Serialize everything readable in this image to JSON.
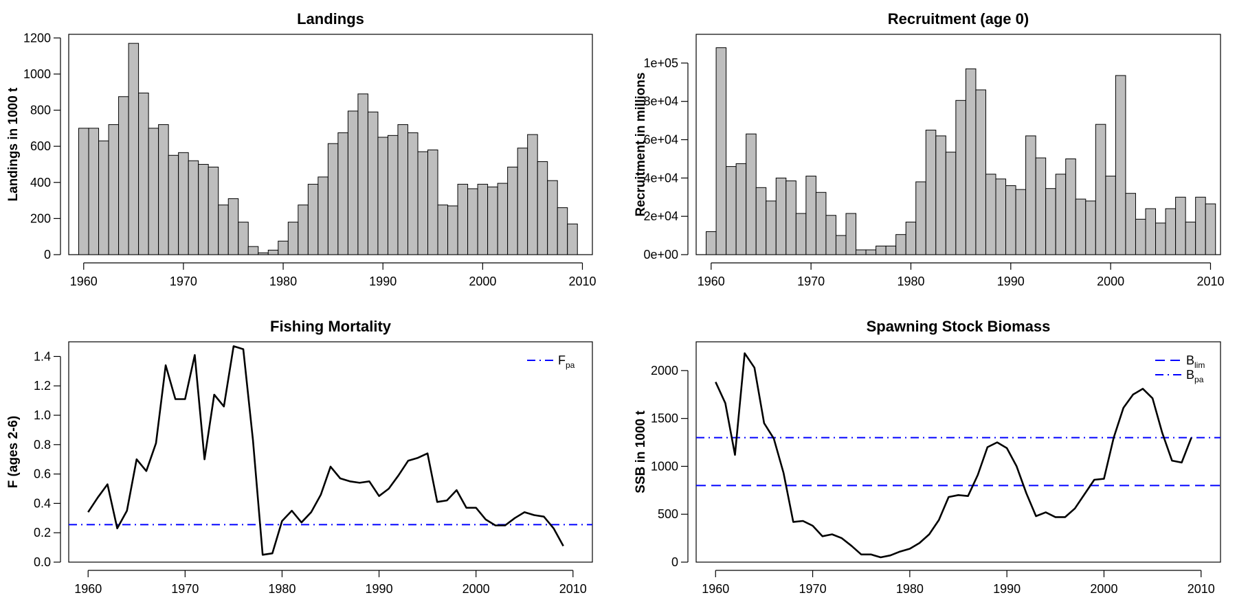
{
  "chart_data": [
    {
      "type": "bar",
      "title": "Landings",
      "xlabel": "",
      "ylabel": "Landings in 1000 t",
      "xlim": [
        1958.5,
        2011
      ],
      "ylim": [
        0,
        1220
      ],
      "x_ticks": [
        1960,
        1970,
        1980,
        1990,
        2000,
        2010
      ],
      "y_ticks": [
        0,
        200,
        400,
        600,
        800,
        1000,
        1200
      ],
      "y_tick_labels": [
        "0",
        "200",
        "400",
        "600",
        "800",
        "1000",
        "1200"
      ],
      "grid": false,
      "bar_color": "#bebebe",
      "x": [
        1960,
        1961,
        1962,
        1963,
        1964,
        1965,
        1966,
        1967,
        1968,
        1969,
        1970,
        1971,
        1972,
        1973,
        1974,
        1975,
        1976,
        1977,
        1978,
        1979,
        1980,
        1981,
        1982,
        1983,
        1984,
        1985,
        1986,
        1987,
        1988,
        1989,
        1990,
        1991,
        1992,
        1993,
        1994,
        1995,
        1996,
        1997,
        1998,
        1999,
        2000,
        2001,
        2002,
        2003,
        2004,
        2005,
        2006,
        2007,
        2008,
        2009
      ],
      "values": [
        700,
        700,
        630,
        720,
        875,
        1170,
        895,
        700,
        720,
        550,
        565,
        520,
        500,
        485,
        275,
        310,
        180,
        45,
        10,
        25,
        75,
        180,
        275,
        390,
        430,
        615,
        675,
        795,
        890,
        790,
        650,
        660,
        720,
        675,
        570,
        580,
        275,
        270,
        390,
        365,
        390,
        375,
        395,
        485,
        590,
        665,
        515,
        410,
        260,
        170
      ]
    },
    {
      "type": "bar",
      "title": "Recruitment (age 0)",
      "xlabel": "",
      "ylabel": "Recruitment in millions",
      "xlim": [
        1958.5,
        2011
      ],
      "ylim": [
        0,
        115000
      ],
      "x_ticks": [
        1960,
        1970,
        1980,
        1990,
        2000,
        2010
      ],
      "y_ticks": [
        0,
        20000,
        40000,
        60000,
        80000,
        100000
      ],
      "y_tick_labels": [
        "0e+00",
        "2e+04",
        "4e+04",
        "6e+04",
        "8e+04",
        "1e+05"
      ],
      "grid": false,
      "bar_color": "#bebebe",
      "x": [
        1960,
        1961,
        1962,
        1963,
        1964,
        1965,
        1966,
        1967,
        1968,
        1969,
        1970,
        1971,
        1972,
        1973,
        1974,
        1975,
        1976,
        1977,
        1978,
        1979,
        1980,
        1981,
        1982,
        1983,
        1984,
        1985,
        1986,
        1987,
        1988,
        1989,
        1990,
        1991,
        1992,
        1993,
        1994,
        1995,
        1996,
        1997,
        1998,
        1999,
        2000,
        2001,
        2002,
        2003,
        2004,
        2005,
        2006,
        2007,
        2008,
        2009,
        2010
      ],
      "values": [
        12000,
        108000,
        46000,
        47500,
        63000,
        35000,
        28000,
        40000,
        38500,
        21500,
        41000,
        32500,
        20500,
        10000,
        21500,
        2500,
        2500,
        4500,
        4500,
        10500,
        17000,
        38000,
        65000,
        62000,
        53500,
        80500,
        97000,
        86000,
        42000,
        39500,
        36000,
        34000,
        62000,
        50500,
        34500,
        42000,
        50000,
        29000,
        28000,
        68000,
        41000,
        93500,
        32000,
        18500,
        24000,
        16500,
        24000,
        30000,
        17000,
        30000,
        26500
      ]
    },
    {
      "type": "line",
      "title": "Fishing Mortality",
      "xlabel": "",
      "ylabel": "F (ages 2-6)",
      "xlim": [
        1958,
        2012
      ],
      "ylim": [
        0,
        1.5
      ],
      "x_ticks": [
        1960,
        1970,
        1980,
        1990,
        2000,
        2010
      ],
      "y_ticks": [
        0,
        0.2,
        0.4,
        0.6,
        0.8,
        1.0,
        1.2,
        1.4
      ],
      "y_tick_labels": [
        "0.0",
        "0.2",
        "0.4",
        "0.6",
        "0.8",
        "1.0",
        "1.2",
        "1.4"
      ],
      "grid": false,
      "legend_position": "top-right",
      "series": [
        {
          "color": "#000000",
          "x": [
            1960,
            1961,
            1962,
            1963,
            1964,
            1965,
            1966,
            1967,
            1968,
            1969,
            1970,
            1971,
            1972,
            1973,
            1974,
            1975,
            1976,
            1977,
            1978,
            1979,
            1980,
            1981,
            1982,
            1983,
            1984,
            1985,
            1986,
            1987,
            1988,
            1989,
            1990,
            1991,
            1992,
            1993,
            1994,
            1995,
            1996,
            1997,
            1998,
            1999,
            2000,
            2001,
            2002,
            2003,
            2004,
            2005,
            2006,
            2007,
            2008,
            2009
          ],
          "values": [
            0.34,
            0.44,
            0.53,
            0.23,
            0.35,
            0.7,
            0.62,
            0.81,
            1.34,
            1.11,
            1.11,
            1.41,
            0.7,
            1.14,
            1.06,
            1.47,
            1.45,
            0.83,
            0.05,
            0.06,
            0.28,
            0.35,
            0.27,
            0.34,
            0.46,
            0.65,
            0.57,
            0.55,
            0.54,
            0.55,
            0.45,
            0.5,
            0.59,
            0.69,
            0.71,
            0.74,
            0.41,
            0.42,
            0.49,
            0.37,
            0.37,
            0.29,
            0.25,
            0.25,
            0.3,
            0.34,
            0.32,
            0.31,
            0.23,
            0.11
          ]
        }
      ],
      "reference_lines": [
        {
          "name": "F",
          "name_sub": "pa",
          "value": 0.255,
          "style": "dashdot",
          "color": "#0000ff"
        }
      ]
    },
    {
      "type": "line",
      "title": "Spawning Stock Biomass",
      "xlabel": "",
      "ylabel": "SSB in 1000 t",
      "xlim": [
        1958,
        2012
      ],
      "ylim": [
        0,
        2300
      ],
      "x_ticks": [
        1960,
        1970,
        1980,
        1990,
        2000,
        2010
      ],
      "y_ticks": [
        0,
        500,
        1000,
        1500,
        2000
      ],
      "y_tick_labels": [
        "0",
        "500",
        "1000",
        "1500",
        "2000"
      ],
      "grid": false,
      "legend_position": "top-right",
      "series": [
        {
          "color": "#000000",
          "x": [
            1960,
            1961,
            1962,
            1963,
            1964,
            1965,
            1966,
            1967,
            1968,
            1969,
            1970,
            1971,
            1972,
            1973,
            1974,
            1975,
            1976,
            1977,
            1978,
            1979,
            1980,
            1981,
            1982,
            1983,
            1984,
            1985,
            1986,
            1987,
            1988,
            1989,
            1990,
            1991,
            1992,
            1993,
            1994,
            1995,
            1996,
            1997,
            1998,
            1999,
            2000,
            2001,
            2002,
            2003,
            2004,
            2005,
            2006,
            2007,
            2008,
            2009
          ],
          "values": [
            1880,
            1660,
            1120,
            2180,
            2030,
            1450,
            1290,
            930,
            420,
            430,
            380,
            270,
            290,
            250,
            170,
            80,
            80,
            50,
            70,
            110,
            140,
            200,
            290,
            440,
            680,
            700,
            690,
            910,
            1200,
            1250,
            1190,
            1000,
            720,
            480,
            520,
            470,
            470,
            560,
            710,
            860,
            870,
            1300,
            1610,
            1750,
            1810,
            1710,
            1350,
            1060,
            1040,
            1300
          ]
        }
      ],
      "reference_lines": [
        {
          "name": "B",
          "name_sub": "lim",
          "value": 800,
          "style": "dashed",
          "color": "#0000ff"
        },
        {
          "name": "B",
          "name_sub": "pa",
          "value": 1300,
          "style": "dashdot",
          "color": "#0000ff"
        }
      ]
    }
  ]
}
